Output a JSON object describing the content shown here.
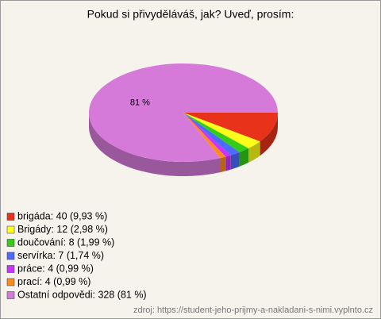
{
  "chart_data": {
    "type": "pie",
    "title": "Pokud si přivyděláváš, jak? Uveď, prosím:",
    "categories": [
      "brigáda: 40 (9,93 %)",
      "Brigády: 12 (2,98 %)",
      "doučování: 8 (1,99 %)",
      "servírka: 7 (1,74 %)",
      "práce: 4 (0,99 %)",
      "prací: 4 (0,99 %)",
      "Ostatní odpovědi: 328 (81 %)"
    ],
    "values": [
      40,
      12,
      8,
      7,
      4,
      4,
      328
    ],
    "value_labels": [
      null,
      null,
      null,
      null,
      null,
      null,
      "81 %"
    ],
    "colors": [
      "#e8321a",
      "#ffff1a",
      "#33cc1a",
      "#4d6bff",
      "#cc33ff",
      "#ff8c1a",
      "#d67ad9"
    ],
    "legend": "bottom-left",
    "source": "zdroj: https://student-jeho-prijmy-a-nakladani-s-nimi.vyplnto.cz"
  }
}
